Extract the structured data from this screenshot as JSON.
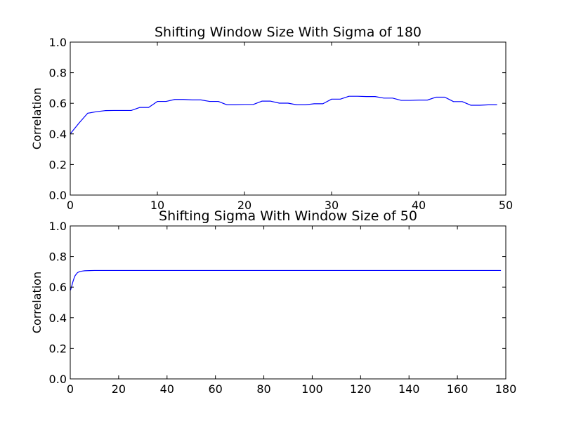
{
  "colors": {
    "series": "#0000ff",
    "frame": "#000000",
    "background": "#ffffff"
  },
  "chart_data": [
    {
      "type": "line",
      "title": "Shifting Window Size With Sigma of 180",
      "xlabel": "",
      "ylabel": "Correlation",
      "xlim": [
        0,
        50
      ],
      "ylim": [
        0,
        1
      ],
      "xticks": [
        0,
        10,
        20,
        30,
        40,
        50
      ],
      "yticks": [
        0.0,
        0.2,
        0.4,
        0.6,
        0.8,
        1.0
      ],
      "xtick_labels": [
        "0",
        "10",
        "20",
        "30",
        "40",
        "50"
      ],
      "ytick_labels": [
        "0.0",
        "0.2",
        "0.4",
        "0.6",
        "0.8",
        "1.0"
      ],
      "grid": false,
      "series": [
        {
          "x": [
            0,
            1,
            2,
            3,
            4,
            5,
            6,
            7,
            8,
            9,
            10,
            11,
            12,
            13,
            14,
            15,
            16,
            17,
            18,
            19,
            20,
            21,
            22,
            23,
            24,
            25,
            26,
            27,
            28,
            29,
            30,
            31,
            32,
            33,
            34,
            35,
            36,
            37,
            38,
            39,
            40,
            41,
            42,
            43,
            44,
            45,
            46,
            47,
            48,
            49
          ],
          "y": [
            0.4,
            0.47,
            0.535,
            0.545,
            0.552,
            0.553,
            0.553,
            0.553,
            0.573,
            0.573,
            0.612,
            0.612,
            0.625,
            0.625,
            0.622,
            0.622,
            0.612,
            0.612,
            0.59,
            0.59,
            0.592,
            0.592,
            0.614,
            0.614,
            0.601,
            0.601,
            0.59,
            0.59,
            0.597,
            0.597,
            0.627,
            0.627,
            0.646,
            0.646,
            0.644,
            0.644,
            0.634,
            0.634,
            0.619,
            0.619,
            0.621,
            0.621,
            0.64,
            0.64,
            0.611,
            0.611,
            0.587,
            0.587,
            0.59,
            0.59
          ]
        }
      ]
    },
    {
      "type": "line",
      "title": "Shifting Sigma With Window Size of 50",
      "xlabel": "",
      "ylabel": "Correlation",
      "xlim": [
        0,
        180
      ],
      "ylim": [
        0,
        1
      ],
      "xticks": [
        0,
        20,
        40,
        60,
        80,
        100,
        120,
        140,
        160,
        180
      ],
      "yticks": [
        0.0,
        0.2,
        0.4,
        0.6,
        0.8,
        1.0
      ],
      "xtick_labels": [
        "0",
        "20",
        "40",
        "60",
        "80",
        "100",
        "120",
        "140",
        "160",
        "180"
      ],
      "ytick_labels": [
        "0.0",
        "0.2",
        "0.4",
        "0.6",
        "0.8",
        "1.0"
      ],
      "grid": false,
      "series": [
        {
          "x": [
            0.1,
            0.5,
            1,
            1.5,
            2,
            3,
            4,
            5,
            6,
            8,
            10,
            15,
            20,
            30,
            50,
            80,
            120,
            150,
            178
          ],
          "y": [
            0.58,
            0.6,
            0.63,
            0.655,
            0.675,
            0.695,
            0.702,
            0.705,
            0.707,
            0.708,
            0.709,
            0.709,
            0.709,
            0.709,
            0.709,
            0.709,
            0.709,
            0.709,
            0.709
          ]
        }
      ]
    }
  ]
}
